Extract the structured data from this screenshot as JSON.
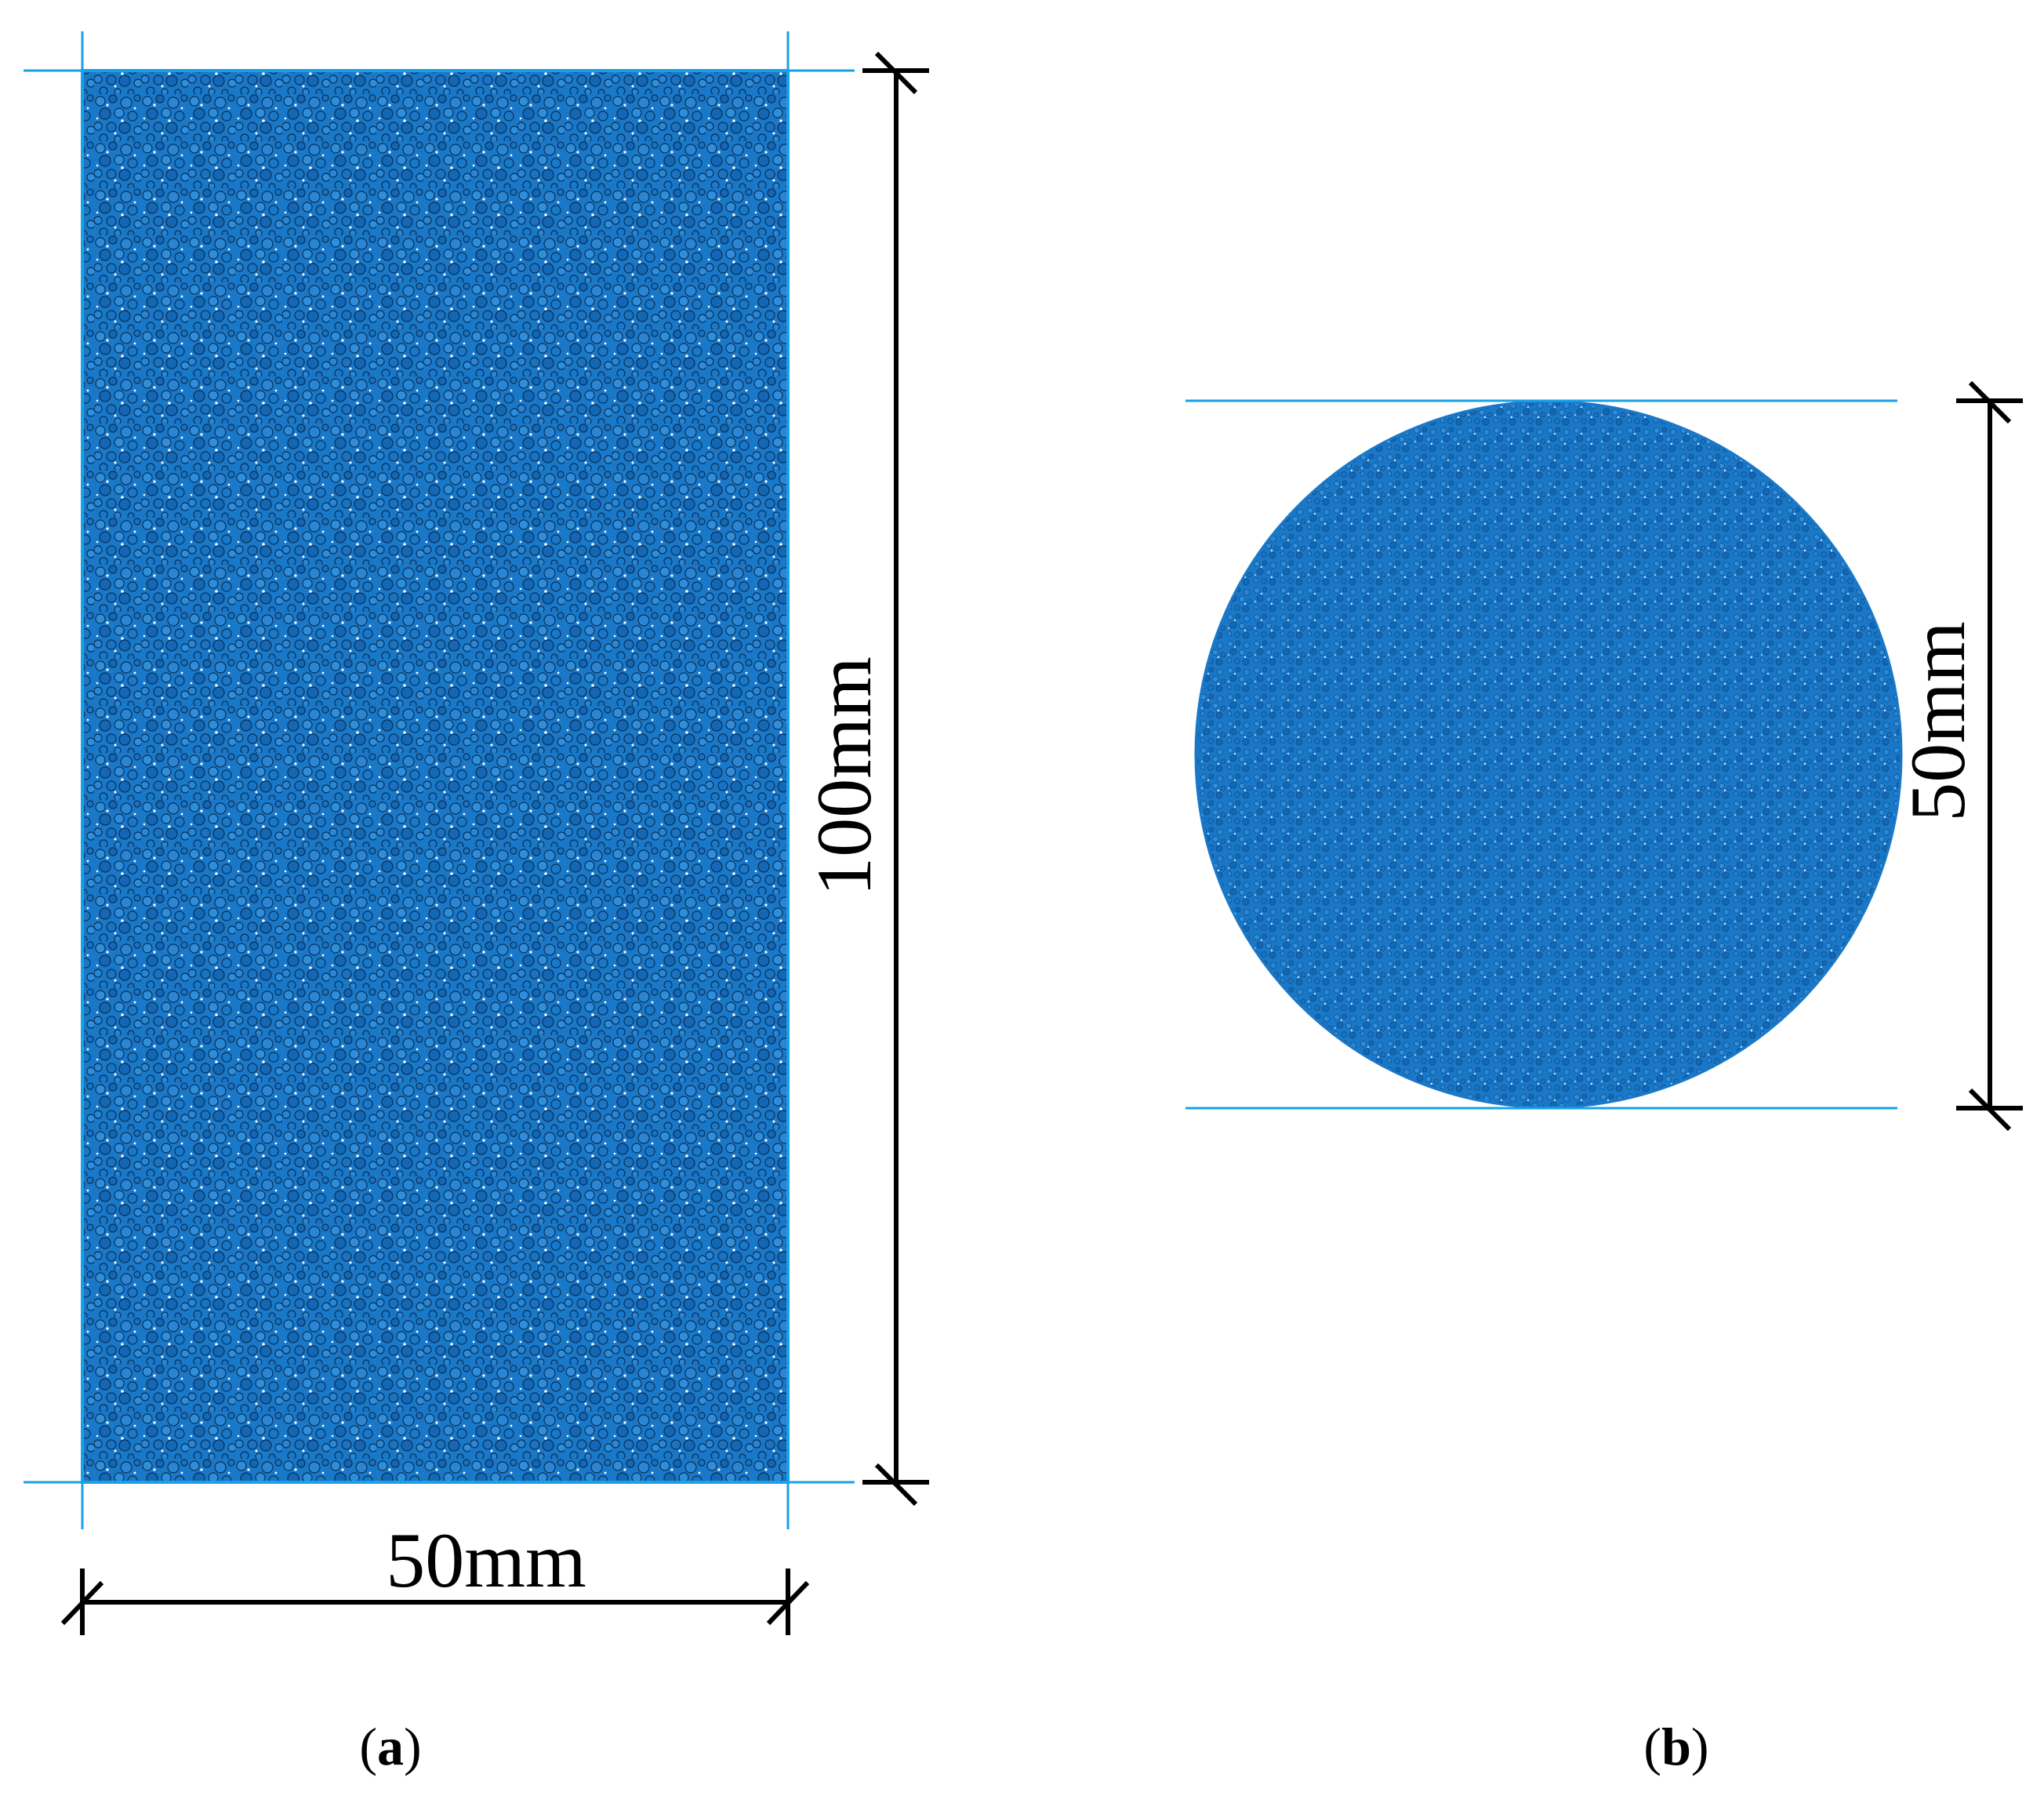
{
  "panel_a": {
    "width_label": "50mm",
    "height_label": "100mm",
    "caption_open": "(",
    "caption_letter": "a",
    "caption_close": ")"
  },
  "panel_b": {
    "diameter_label": "50mm",
    "caption_open": "(",
    "caption_letter": "b",
    "caption_close": ")"
  },
  "colors": {
    "particle_fill": "#1a78c8",
    "particle_light": "#2f8edb",
    "particle_dark": "#0d5ea6",
    "guide_line": "#19a0e6",
    "dimension_line": "#000000",
    "background": "#ffffff"
  }
}
